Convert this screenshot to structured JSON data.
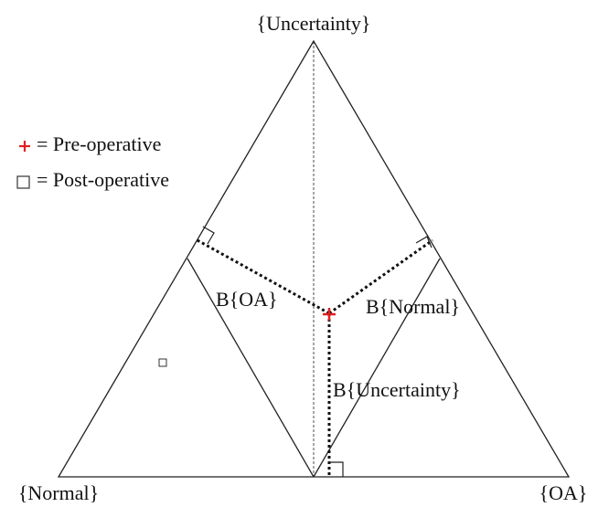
{
  "vertices": {
    "top": "{Uncertainty}",
    "left": "{Normal}",
    "right": "{OA}"
  },
  "regions": {
    "oa": "B{OA}",
    "normal": "B{Normal}",
    "uncertainty": "B{Uncertainty}"
  },
  "legend": [
    {
      "label": "= Pre-operative"
    },
    {
      "label": "= Post-operative"
    }
  ]
}
